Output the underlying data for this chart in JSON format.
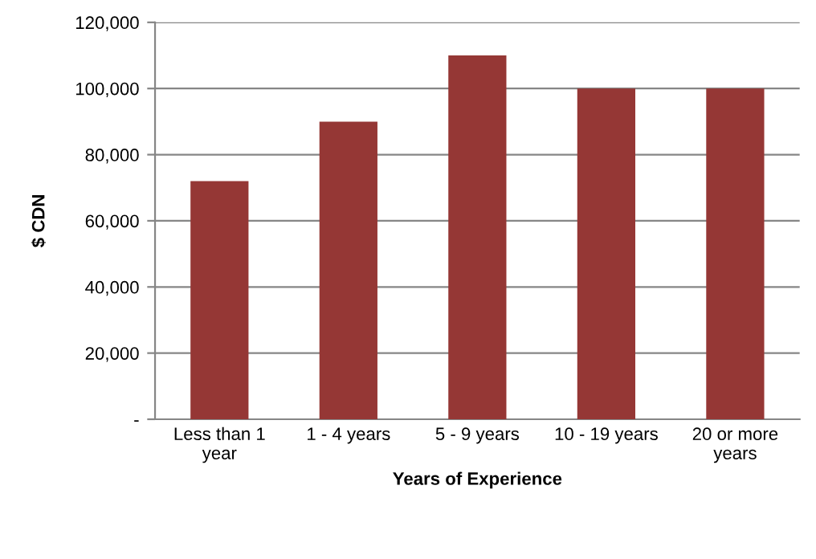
{
  "chart_data": {
    "type": "bar",
    "xlabel": "Years of Experience",
    "ylabel": "$ CDN",
    "categories": [
      "Less than 1\nyear",
      "1 - 4 years",
      "5 - 9 years",
      "10 - 19 years",
      "20 or more\nyears"
    ],
    "values": [
      72000,
      90000,
      110000,
      100000,
      100000
    ],
    "color": "#953735",
    "ylim": [
      0,
      120000
    ],
    "yticks": [
      {
        "value": 0,
        "label": "-"
      },
      {
        "value": 20000,
        "label": "20,000"
      },
      {
        "value": 40000,
        "label": "40,000"
      },
      {
        "value": 60000,
        "label": "60,000"
      },
      {
        "value": 80000,
        "label": "80,000"
      },
      {
        "value": 100000,
        "label": "100,000"
      },
      {
        "value": 120000,
        "label": "120,000"
      }
    ],
    "grid": "y"
  }
}
